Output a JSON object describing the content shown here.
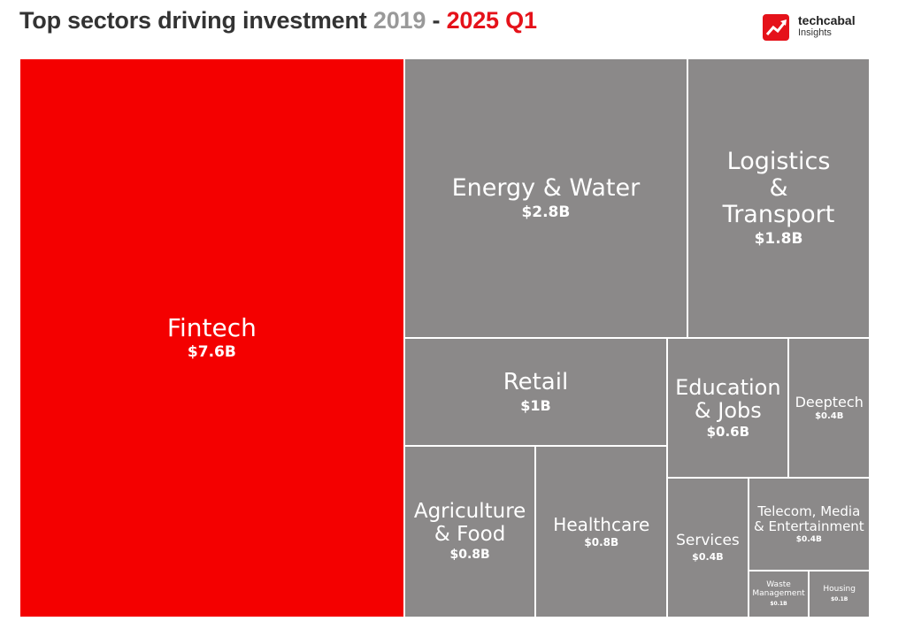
{
  "chart_data": {
    "type": "treemap",
    "title": "Top sectors driving investment",
    "period_start": "2019",
    "period_separator": "-",
    "period_end": "2025 Q1",
    "source": "techcabal",
    "source_sub": "Insights",
    "categories": [
      "Fintech",
      "Energy & Water",
      "Logistics & Transport",
      "Retail",
      "Education & Jobs",
      "Deeptech",
      "Agriculture & Food",
      "Healthcare",
      "Services",
      "Telecom, Media & Entertainment",
      "Waste Management",
      "Housing"
    ],
    "values": [
      7.6,
      2.8,
      1.8,
      1,
      0.6,
      0.4,
      0.8,
      0.8,
      0.4,
      0.4,
      0.1,
      0.1
    ],
    "value_labels": [
      "$7.6B",
      "$2.8B",
      "$1.8B",
      "$1B",
      "$0.6B",
      "$0.4B",
      "$0.8B",
      "$0.8B",
      "$0.4B",
      "$0.4B",
      "$0.1B",
      "$0.1B"
    ],
    "colors": [
      "#f40000",
      "#8b8989",
      "#8b8989",
      "#8b8989",
      "#8b8989",
      "#8b8989",
      "#8b8989",
      "#8b8989",
      "#8b8989",
      "#8b8989",
      "#8b8989",
      "#8b8989"
    ]
  }
}
